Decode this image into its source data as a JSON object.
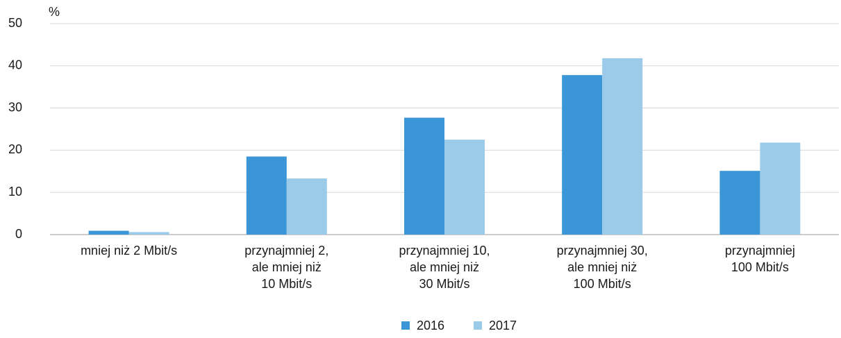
{
  "chart_data": {
    "type": "bar",
    "unit_label": "%",
    "categories": [
      [
        "mniej niż 2 Mbit/s"
      ],
      [
        "przynajmniej 2,",
        "ale mniej niż",
        "10 Mbit/s"
      ],
      [
        "przynajmniej 10,",
        "ale mniej niż",
        "30 Mbit/s"
      ],
      [
        "przynajmniej 30,",
        "ale mniej niż",
        "100 Mbit/s"
      ],
      [
        "przynajmniej",
        "100 Mbit/s"
      ]
    ],
    "series": [
      {
        "name": "2016",
        "color": "#3a96d6",
        "values": [
          0.9,
          18.5,
          27.7,
          37.8,
          15.1
        ]
      },
      {
        "name": "2017",
        "color": "#9ccbea",
        "values": [
          0.6,
          13.3,
          22.5,
          41.8,
          21.8
        ]
      }
    ],
    "ylim": [
      0,
      50
    ],
    "yticks": [
      0,
      10,
      20,
      30,
      40,
      50
    ],
    "grid": true,
    "legend": "bottom"
  }
}
